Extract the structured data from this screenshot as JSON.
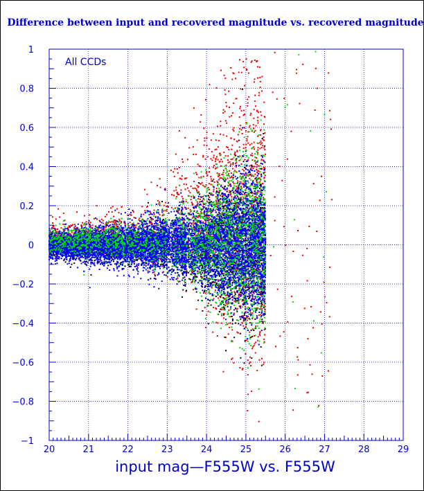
{
  "chart_data": {
    "type": "scatter",
    "title": "Difference between input and recovered magnitude vs. recovered magnitude",
    "xlabel": "input mag—F555W vs. F555W",
    "ylabel": "",
    "xlim": [
      20,
      29
    ],
    "ylim": [
      -1,
      1
    ],
    "x_ticks": [
      "20",
      "21",
      "22",
      "23",
      "24",
      "25",
      "26",
      "27",
      "28",
      "29"
    ],
    "y_ticks": [
      "1",
      "0.8",
      "0.6",
      "0.4",
      "0.2",
      "0",
      "−0.2",
      "−0.4",
      "−0.6",
      "−0.8",
      "−1"
    ],
    "grid": true,
    "annotation": "All CCDs",
    "colors": {
      "axis": "#0000cc",
      "grid": "#0000cc",
      "blue_points": "#0000ff",
      "green_points": "#00dd00",
      "red_points": "#ee0000",
      "black_points": "#000000"
    },
    "series": [
      {
        "color": "#0000ff",
        "x_range": [
          20,
          25.5
        ],
        "y_center": 0,
        "spread_at_20": 0.05,
        "spread_at_25": 0.3
      },
      {
        "color": "#00dd00",
        "x_range": [
          20,
          25.5
        ],
        "y_center": 0.02,
        "spread_at_20": 0.05,
        "spread_at_25": 0.35
      },
      {
        "color": "#ee0000",
        "x_range": [
          20,
          26.8
        ],
        "y_center": 0.05,
        "spread_at_20": 0.05,
        "spread_at_25": 0.5
      },
      {
        "color": "#000000",
        "x_range": [
          20,
          25.5
        ],
        "y_center": -0.02,
        "spread_at_20": 0.05,
        "spread_at_25": 0.3
      }
    ]
  }
}
